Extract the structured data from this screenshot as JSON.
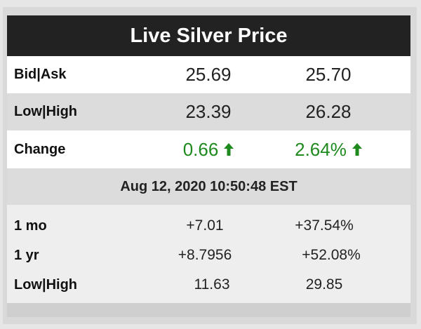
{
  "title": "Live Silver Price",
  "rows": [
    {
      "label": "Bid|Ask",
      "values": [
        "25.69",
        "25.70"
      ]
    },
    {
      "label": "Low|High",
      "values": [
        "23.39",
        "26.28"
      ]
    },
    {
      "label": "Change",
      "values": [
        "0.66",
        "2.64%"
      ]
    }
  ],
  "timestamp": "Aug 12, 2020 10:50:48 EST",
  "history": [
    {
      "label": "1 mo",
      "values": [
        "+7.01",
        "+37.54%"
      ]
    },
    {
      "label": "1 yr",
      "values": [
        "+8.7956",
        "+52.08%"
      ]
    },
    {
      "label": "Low|High",
      "values": [
        "11.63",
        "29.85"
      ]
    }
  ]
}
